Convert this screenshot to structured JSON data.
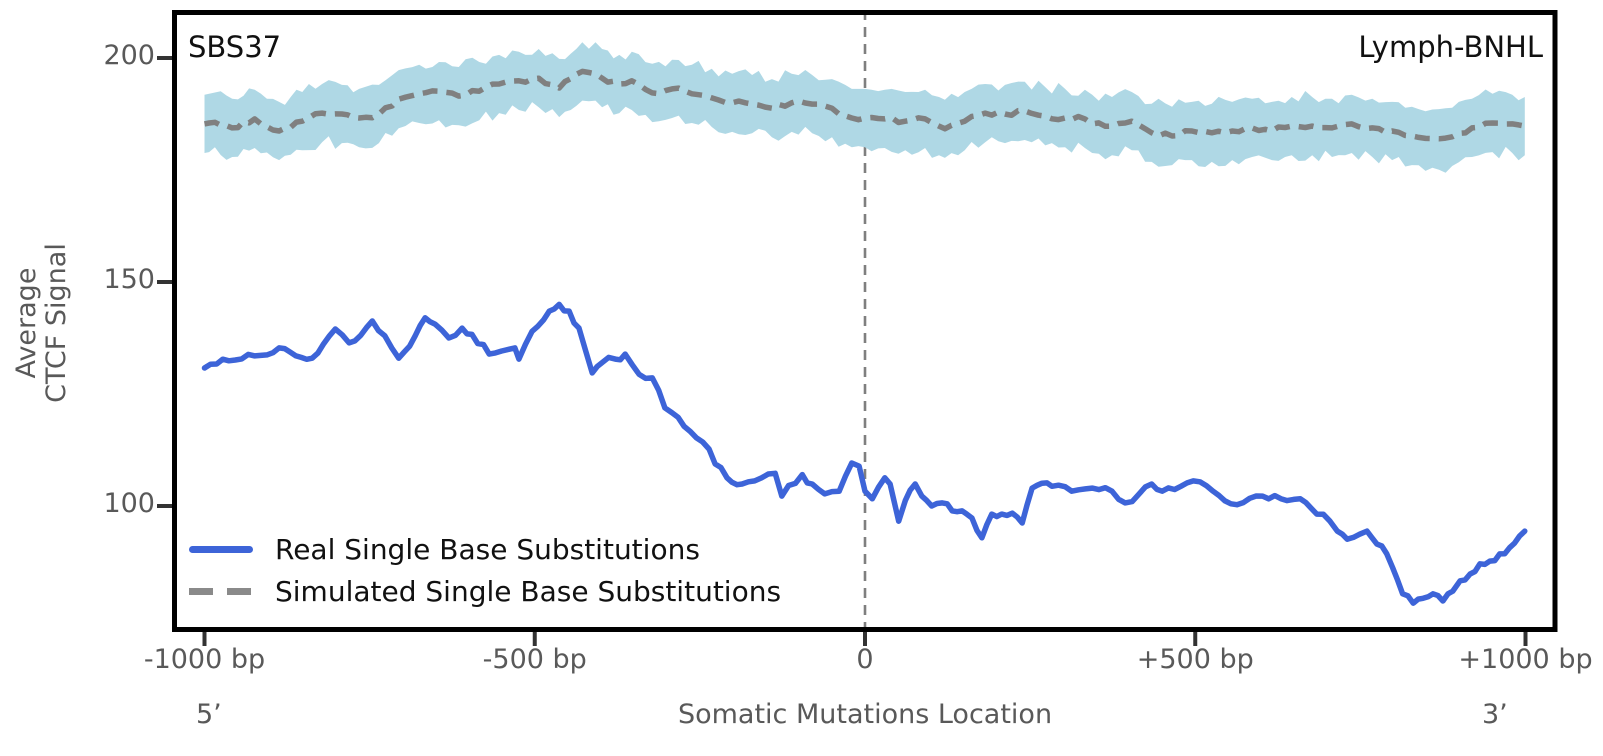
{
  "titles": {
    "left": "SBS37",
    "right": "Lymph-BNHL"
  },
  "axes": {
    "ylabel_line1": "Average",
    "ylabel_line2": "CTCF Signal",
    "xlabel": "Somatic Mutations Location",
    "x_start_label": "5’",
    "x_end_label": "3’",
    "yticks": [
      {
        "v": 200,
        "label": "200"
      },
      {
        "v": 150,
        "label": "150"
      },
      {
        "v": 100,
        "label": "100"
      }
    ],
    "xticks": [
      {
        "bp": -1000,
        "label": "-1000 bp"
      },
      {
        "bp": -500,
        "label": "-500 bp"
      },
      {
        "bp": 0,
        "label": "0"
      },
      {
        "bp": 500,
        "label": "+500 bp"
      },
      {
        "bp": 1000,
        "label": "+1000 bp"
      }
    ]
  },
  "legend": {
    "items": [
      {
        "label": "Real Single Base Substitutions",
        "style": "solid",
        "color": "#3D64D8"
      },
      {
        "label": "Simulated Single Base Substitutions",
        "style": "dashed",
        "color": "#8A8A8A"
      }
    ]
  },
  "colors": {
    "real_line": "#3D64D8",
    "simulated_line": "#808080",
    "confidence_band": "#AFD8E5",
    "zero_line": "#7F7F7F",
    "axis_frame": "#000000",
    "tick_text": "#595959",
    "title_text": "#111111"
  },
  "chart_data": {
    "type": "line",
    "title": "SBS37 / Lymph-BNHL",
    "xlabel": "Somatic Mutations Location",
    "ylabel": "Average CTCF Signal",
    "xlim": [
      -1049,
      1048
    ],
    "ylim": [
      72,
      210.5
    ],
    "grid": false,
    "legend_position": "lower left",
    "vline_x": 0,
    "series": [
      {
        "name": "Real Single Base Substitutions",
        "style": "solid",
        "x": [
          -1000,
          -963,
          -924,
          -887,
          -837,
          -802,
          -781,
          -746,
          -727,
          -706,
          -681,
          -666,
          -651,
          -630,
          -610,
          -595,
          -569,
          -550,
          -530,
          -524,
          -504,
          -478,
          -463,
          -448,
          -433,
          -413,
          -398,
          -378,
          -363,
          -342,
          -322,
          -303,
          -292,
          -265,
          -236,
          -227,
          -209,
          -186,
          -167,
          -136,
          -126,
          -95,
          -80,
          -61,
          -39,
          -20,
          -9,
          0,
          11,
          30,
          38,
          51,
          61,
          76,
          86,
          101,
          117,
          132,
          147,
          162,
          177,
          192,
          207,
          223,
          238,
          253,
          268,
          283,
          313,
          344,
          374,
          394,
          415,
          434,
          450,
          497,
          527,
          563,
          602,
          639,
          659,
          684,
          704,
          715,
          730,
          749,
          760,
          775,
          790,
          799,
          814,
          830,
          845,
          860,
          875,
          890,
          901,
          916,
          931,
          946,
          961,
          976,
          991,
          999
        ],
        "y": [
          130.8,
          132.4,
          133.5,
          135.3,
          133.0,
          139.5,
          136.4,
          141.3,
          138.0,
          133.0,
          138.0,
          142.0,
          140.6,
          137.5,
          139.7,
          138.3,
          133.9,
          134.6,
          135.3,
          132.8,
          139.0,
          143.5,
          145.0,
          143.5,
          139.7,
          129.7,
          132.0,
          132.8,
          133.9,
          129.4,
          128.6,
          121.9,
          120.8,
          116.7,
          112.7,
          109.4,
          106.3,
          104.9,
          105.6,
          107.3,
          102.2,
          107.0,
          104.9,
          102.7,
          103.3,
          109.6,
          108.9,
          103.3,
          101.6,
          106.3,
          104.9,
          96.6,
          101.2,
          104.9,
          102.2,
          100.0,
          100.7,
          98.9,
          98.9,
          97.3,
          92.9,
          98.2,
          98.2,
          98.4,
          96.2,
          104.0,
          105.1,
          104.4,
          103.3,
          104.0,
          103.3,
          100.7,
          102.7,
          104.9,
          103.3,
          105.6,
          103.3,
          100.3,
          102.2,
          101.2,
          101.6,
          98.2,
          96.6,
          94.4,
          92.6,
          93.7,
          94.4,
          91.5,
          89.3,
          86.2,
          80.4,
          78.3,
          79.4,
          80.4,
          78.8,
          81.0,
          83.3,
          84.8,
          87.1,
          87.7,
          89.3,
          90.7,
          93.3,
          94.4
        ]
      },
      {
        "name": "Simulated Single Base Substitutions",
        "style": "dashed",
        "band_halfwidth": 6.5,
        "x": [
          -1000,
          -993,
          -958,
          -924,
          -887,
          -852,
          -822,
          -792,
          -766,
          -736,
          -706,
          -675,
          -645,
          -615,
          -584,
          -554,
          -524,
          -494,
          -463,
          -428,
          -398,
          -372,
          -353,
          -322,
          -292,
          -262,
          -232,
          -201,
          -171,
          -141,
          -111,
          -80,
          -50,
          -20,
          0,
          30,
          61,
          91,
          112,
          121,
          151,
          182,
          212,
          242,
          273,
          303,
          333,
          344,
          374,
          404,
          434,
          465,
          495,
          525,
          556,
          586,
          616,
          646,
          677,
          707,
          737,
          768,
          798,
          828,
          859,
          889,
          919,
          950,
          980,
          999
        ],
        "y": [
          185.3,
          185.5,
          184.4,
          186.4,
          183.7,
          185.9,
          187.7,
          187.5,
          186.6,
          187.5,
          190.8,
          192.0,
          192.6,
          191.5,
          192.6,
          194.2,
          194.9,
          195.5,
          193.3,
          197.0,
          195.5,
          194.2,
          194.9,
          192.2,
          193.1,
          192.0,
          191.1,
          190.0,
          189.7,
          188.8,
          190.0,
          189.7,
          188.8,
          186.6,
          186.6,
          186.4,
          185.9,
          186.4,
          184.8,
          184.2,
          185.9,
          187.7,
          187.5,
          188.2,
          187.0,
          186.6,
          186.4,
          185.3,
          184.8,
          185.9,
          183.3,
          182.6,
          183.7,
          183.3,
          183.7,
          184.4,
          183.7,
          184.8,
          184.8,
          184.4,
          185.3,
          184.4,
          183.7,
          182.6,
          182.0,
          182.4,
          184.4,
          185.5,
          185.3,
          184.8
        ]
      }
    ]
  }
}
